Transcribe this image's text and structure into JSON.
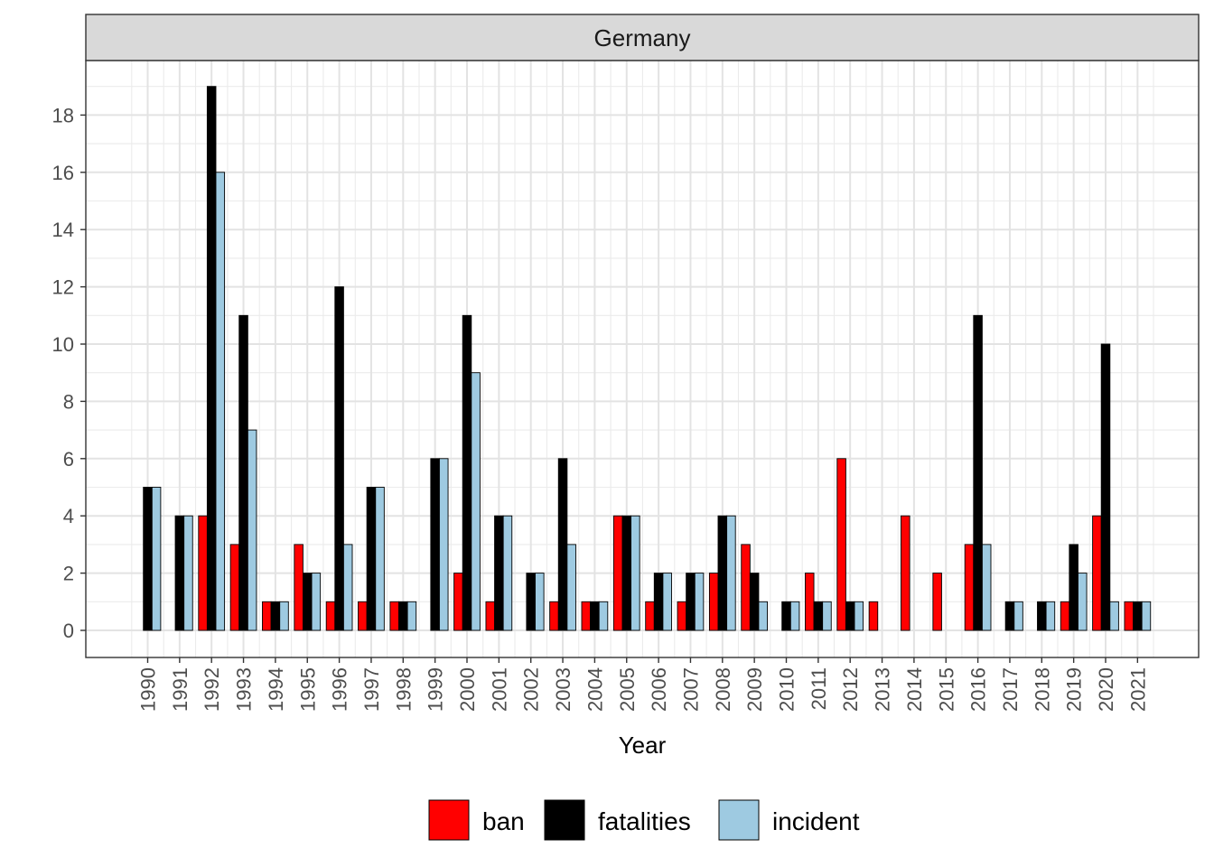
{
  "chart_data": {
    "type": "bar",
    "facet_title": "Germany",
    "xlabel": "Year",
    "ylabel": "",
    "ylim": [
      -0.9,
      19.9
    ],
    "y_ticks": [
      0,
      2,
      4,
      6,
      8,
      10,
      12,
      14,
      16,
      18
    ],
    "grid": true,
    "legend_position": "bottom",
    "categories": [
      "1990",
      "1991",
      "1992",
      "1993",
      "1994",
      "1995",
      "1996",
      "1997",
      "1998",
      "1999",
      "2000",
      "2001",
      "2002",
      "2003",
      "2004",
      "2005",
      "2006",
      "2007",
      "2008",
      "2009",
      "2010",
      "2011",
      "2012",
      "2013",
      "2014",
      "2015",
      "2016",
      "2017",
      "2018",
      "2019",
      "2020",
      "2021"
    ],
    "series": [
      {
        "name": "ban",
        "color": "#ff0000",
        "values": [
          null,
          null,
          4,
          3,
          1,
          3,
          1,
          1,
          1,
          null,
          2,
          1,
          null,
          1,
          1,
          4,
          1,
          1,
          2,
          3,
          null,
          2,
          6,
          1,
          4,
          2,
          3,
          null,
          null,
          1,
          4,
          1
        ]
      },
      {
        "name": "fatalities",
        "color": "#000000",
        "values": [
          5,
          4,
          19,
          11,
          1,
          2,
          12,
          5,
          1,
          6,
          11,
          4,
          2,
          6,
          1,
          4,
          2,
          2,
          4,
          2,
          1,
          1,
          1,
          null,
          null,
          null,
          11,
          1,
          1,
          3,
          10,
          1
        ]
      },
      {
        "name": "incident",
        "color": "#9ecae1",
        "values": [
          5,
          4,
          16,
          7,
          1,
          2,
          3,
          5,
          1,
          6,
          9,
          4,
          2,
          3,
          1,
          4,
          2,
          2,
          4,
          1,
          1,
          1,
          1,
          null,
          null,
          null,
          3,
          1,
          1,
          2,
          1,
          1
        ]
      }
    ]
  }
}
